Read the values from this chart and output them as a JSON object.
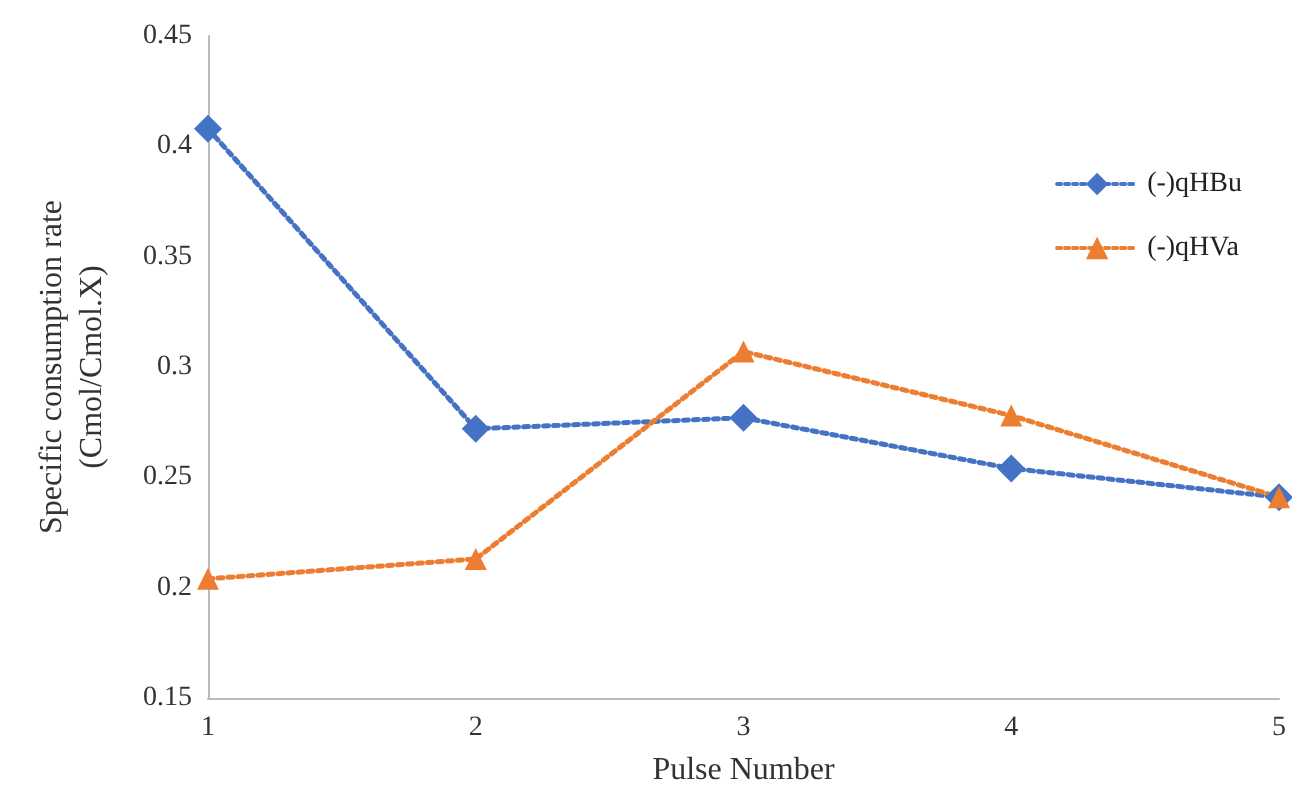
{
  "chart_data": {
    "type": "line",
    "xlabel": "Pulse Number",
    "ylabel": "Specific consumption rate\n(Cmol/Cmol.X)",
    "x": [
      1,
      2,
      3,
      4,
      5
    ],
    "xlim": [
      1,
      5
    ],
    "xticks": [
      1,
      2,
      3,
      4,
      5
    ],
    "ylim": [
      0.15,
      0.45
    ],
    "yticks": [
      0.15,
      0.2,
      0.25,
      0.3,
      0.35,
      0.4,
      0.45
    ],
    "grid": false,
    "legend": "right",
    "line_style": "dotted",
    "series": [
      {
        "name": "(-)qHBu",
        "color": "#4472c4",
        "marker": "diamond",
        "values": [
          0.408,
          0.272,
          0.277,
          0.254,
          0.241
        ]
      },
      {
        "name": "(-)qHVa",
        "color": "#ed7d31",
        "marker": "triangle",
        "values": [
          0.204,
          0.213,
          0.307,
          0.278,
          0.241
        ]
      }
    ]
  }
}
